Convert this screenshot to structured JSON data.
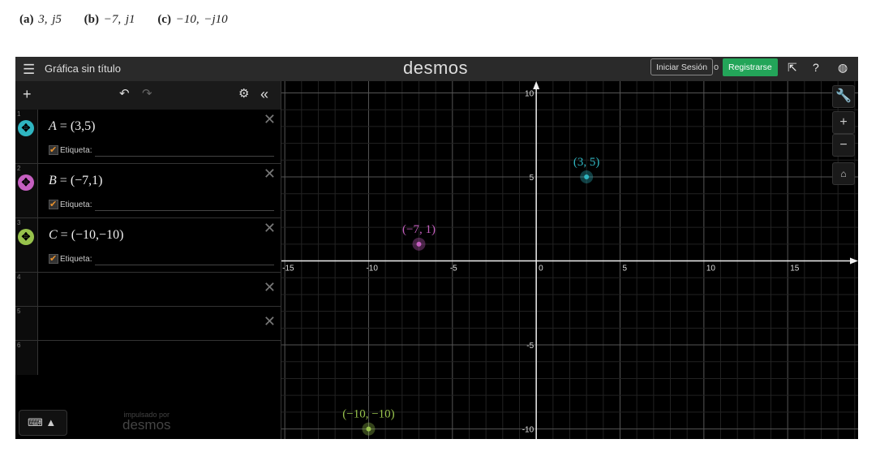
{
  "problem": [
    {
      "label": "(a)",
      "value": "3, j5"
    },
    {
      "label": "(b)",
      "value": "−7, j1"
    },
    {
      "label": "(c)",
      "value": "−10, −j10"
    }
  ],
  "header": {
    "title": "Gráfica sin título",
    "logo": "desmos",
    "login": "Iniciar Sesión",
    "or": "o",
    "register": "Registrarse",
    "icons": [
      "share-icon",
      "help-icon",
      "globe-icon"
    ]
  },
  "expressions": [
    {
      "num": "1",
      "var": "A",
      "value": "(3,5)",
      "color": "#2fb5c0",
      "label": "Etiqueta:"
    },
    {
      "num": "2",
      "var": "B",
      "value": "(−7,1)",
      "color": "#c55fc0",
      "label": "Etiqueta:"
    },
    {
      "num": "3",
      "var": "C",
      "value": "(−10,−10)",
      "color": "#97c24c",
      "label": "Etiqueta:"
    }
  ],
  "empty_rows": [
    "4",
    "5",
    "6"
  ],
  "powered": {
    "small": "impulsado por",
    "brand": "desmos"
  },
  "chart_data": {
    "type": "scatter",
    "xlim": [
      -15.2,
      19.2
    ],
    "ylim": [
      -10.6,
      10.7
    ],
    "grid": true,
    "xticks": [
      -15,
      -10,
      -5,
      0,
      5,
      10,
      15
    ],
    "yticks": [
      -10,
      -5,
      5,
      10
    ],
    "points": [
      {
        "x": 3,
        "y": 5,
        "label": "(3, 5)",
        "color": "#2fb5c0"
      },
      {
        "x": -7,
        "y": 1,
        "label": "(−7, 1)",
        "color": "#c55fc0"
      },
      {
        "x": -10,
        "y": -10,
        "label": "(−10, −10)",
        "color": "#97c24c"
      }
    ]
  }
}
